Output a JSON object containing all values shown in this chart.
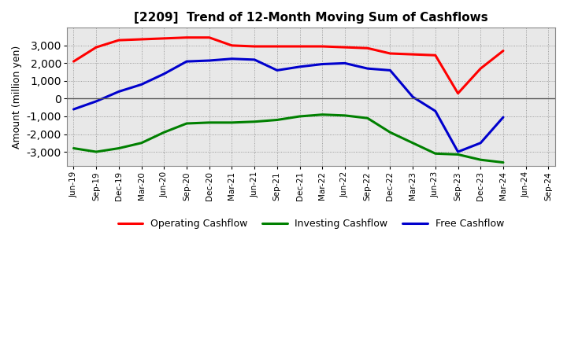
{
  "title": "[2209]  Trend of 12-Month Moving Sum of Cashflows",
  "ylabel": "Amount (million yen)",
  "xlabels": [
    "Jun-19",
    "Sep-19",
    "Dec-19",
    "Mar-20",
    "Jun-20",
    "Sep-20",
    "Dec-20",
    "Mar-21",
    "Jun-21",
    "Sep-21",
    "Dec-21",
    "Mar-22",
    "Jun-22",
    "Sep-22",
    "Dec-22",
    "Mar-23",
    "Jun-23",
    "Sep-23",
    "Dec-23",
    "Mar-24",
    "Jun-24",
    "Sep-24"
  ],
  "operating": [
    2100,
    2900,
    3300,
    3350,
    3400,
    3450,
    3450,
    3000,
    2950,
    2950,
    2950,
    2950,
    2900,
    2850,
    2550,
    2500,
    2450,
    300,
    1700,
    2700,
    null,
    null
  ],
  "investing": [
    -2800,
    -3000,
    -2800,
    -2500,
    -1900,
    -1400,
    -1350,
    -1350,
    -1300,
    -1200,
    -1000,
    -900,
    -950,
    -1100,
    -1900,
    -2500,
    -3100,
    -3150,
    -3450,
    -3600,
    null,
    null
  ],
  "free": [
    -600,
    -150,
    400,
    800,
    1400,
    2100,
    2150,
    2250,
    2200,
    1600,
    1800,
    1950,
    2000,
    1700,
    1600,
    100,
    -700,
    -3000,
    -2500,
    -1050,
    null,
    null
  ],
  "colors": {
    "operating": "#ff0000",
    "investing": "#008000",
    "free": "#0000cd"
  },
  "ylim": [
    -3800,
    4000
  ],
  "yticks": [
    -3000,
    -2000,
    -1000,
    0,
    1000,
    2000,
    3000
  ],
  "background": "#ffffff",
  "plot_bg": "#e8e8e8",
  "grid_color": "#888888",
  "legend_labels": [
    "Operating Cashflow",
    "Investing Cashflow",
    "Free Cashflow"
  ]
}
